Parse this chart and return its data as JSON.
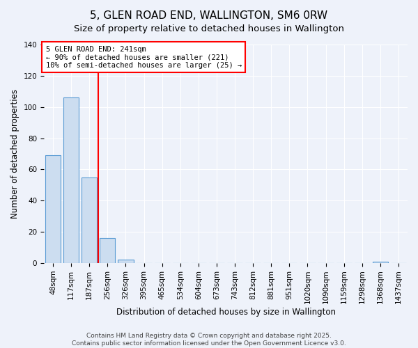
{
  "title": "5, GLEN ROAD END, WALLINGTON, SM6 0RW",
  "subtitle": "Size of property relative to detached houses in Wallington",
  "xlabel": "Distribution of detached houses by size in Wallington",
  "ylabel": "Number of detached properties",
  "bin_labels": [
    "48sqm",
    "117sqm",
    "187sqm",
    "256sqm",
    "326sqm",
    "395sqm",
    "465sqm",
    "534sqm",
    "604sqm",
    "673sqm",
    "743sqm",
    "812sqm",
    "881sqm",
    "951sqm",
    "1020sqm",
    "1090sqm",
    "1159sqm",
    "1298sqm",
    "1368sqm",
    "1437sqm"
  ],
  "bar_values": [
    69,
    106,
    55,
    16,
    2,
    0,
    0,
    0,
    0,
    0,
    0,
    0,
    0,
    0,
    0,
    0,
    0,
    0,
    1,
    0
  ],
  "bar_color": "#ccddf0",
  "bar_edge_color": "#5a9bd4",
  "vline_color": "red",
  "vline_x": 3.0,
  "ylim": [
    0,
    140
  ],
  "annotation_line1": "5 GLEN ROAD END: 241sqm",
  "annotation_line2": "← 90% of detached houses are smaller (221)",
  "annotation_line3": "10% of semi-detached houses are larger (25) →",
  "annotation_box_color": "white",
  "annotation_box_edge": "red",
  "footer1": "Contains HM Land Registry data © Crown copyright and database right 2025.",
  "footer2": "Contains public sector information licensed under the Open Government Licence v3.0.",
  "background_color": "#eef2fa",
  "title_fontsize": 11,
  "subtitle_fontsize": 9.5,
  "tick_fontsize": 7.5,
  "ylabel_fontsize": 8.5,
  "xlabel_fontsize": 8.5,
  "annotation_fontsize": 7.5,
  "footer_fontsize": 6.5
}
